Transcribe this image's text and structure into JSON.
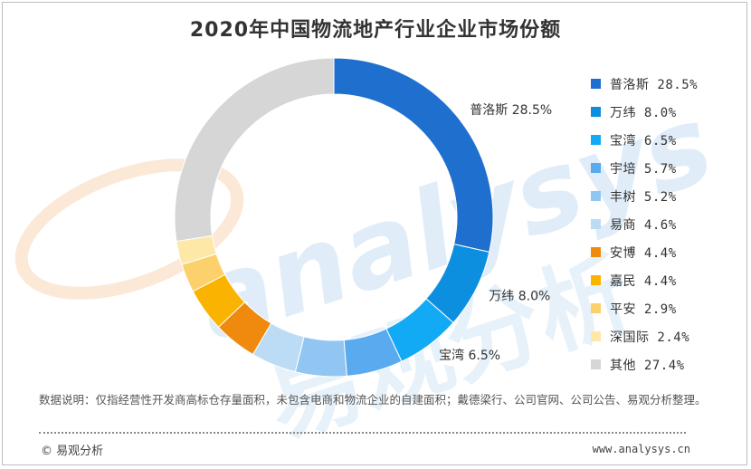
{
  "title": "2020年中国物流地产行业企业市场份额",
  "watermark": {
    "text_latin": "analysys",
    "text_cn": "易观分析",
    "color": "#d6e8f8",
    "accent": "#fbe2cc"
  },
  "chart_data": {
    "type": "pie",
    "subtype": "donut",
    "title": "2020年中国物流地产行业企业市场份额",
    "legend_position": "right",
    "slices": [
      {
        "name": "普洛斯",
        "value": 28.5,
        "label": "普洛斯 28.5%",
        "legend": "普洛斯 28.5%",
        "color": "#1f6fcf"
      },
      {
        "name": "万纬",
        "value": 8.0,
        "label": "万纬 8.0%",
        "legend": "万纬 8.0%",
        "color": "#0d8fe0"
      },
      {
        "name": "宝湾",
        "value": 6.5,
        "label": "宝湾 6.5%",
        "legend": "宝湾 6.5%",
        "color": "#12aaf5"
      },
      {
        "name": "宇培",
        "value": 5.7,
        "label": "",
        "legend": "宇培 5.7%",
        "color": "#5aaaf0"
      },
      {
        "name": "丰树",
        "value": 5.2,
        "label": "",
        "legend": "丰树 5.2%",
        "color": "#92c6f2"
      },
      {
        "name": "易商",
        "value": 4.6,
        "label": "",
        "legend": "易商 4.6%",
        "color": "#bcdcf6"
      },
      {
        "name": "安博",
        "value": 4.4,
        "label": "",
        "legend": "安博 4.4%",
        "color": "#f08a0e"
      },
      {
        "name": "嘉民",
        "value": 4.4,
        "label": "",
        "legend": "嘉民 4.4%",
        "color": "#fab300"
      },
      {
        "name": "平安",
        "value": 2.9,
        "label": "",
        "legend": "平安 2.9%",
        "color": "#fcd06a"
      },
      {
        "name": "深国际",
        "value": 2.4,
        "label": "",
        "legend": "深国际 2.4%",
        "color": "#fde8a8"
      },
      {
        "name": "其他",
        "value": 27.4,
        "label": "",
        "legend": "其他 27.4%",
        "color": "#d6d6d6"
      }
    ]
  },
  "note": "数据说明：仅指经营性开发商高标仓存量面积，未包含电商和物流企业的自建面积；戴德梁行、公司官网、公司公告、易观分析整理。",
  "footer": {
    "left": "© 易观分析",
    "right": "www.analysys.cn"
  }
}
